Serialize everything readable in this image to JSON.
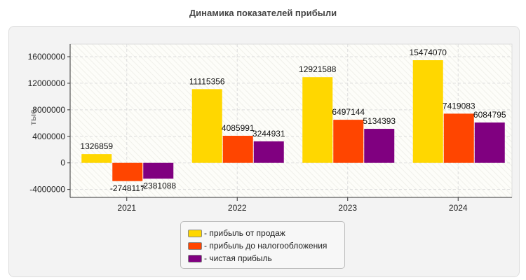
{
  "chart_data": {
    "type": "bar",
    "title": "Динамика показателей прибыли",
    "ylabel": "тыс.",
    "xlabel": "",
    "categories": [
      "2021",
      "2022",
      "2023",
      "2024"
    ],
    "series": [
      {
        "name": "- прибыль от продаж",
        "color": "#FFD700",
        "values": [
          1326859,
          11115356,
          12921588,
          15474070
        ]
      },
      {
        "name": "- прибыль до налогообложения",
        "color": "#FF4500",
        "values": [
          -2748117,
          4085991,
          6497144,
          7419083
        ]
      },
      {
        "name": "- чистая прибыль",
        "color": "#800080",
        "values": [
          -2381088,
          3244931,
          5134393,
          6084795
        ]
      }
    ],
    "yticks": [
      -4000000,
      0,
      4000000,
      8000000,
      12000000,
      16000000
    ],
    "ylim": [
      -5200000,
      17900000
    ],
    "grid": true,
    "legend_position": "bottom"
  }
}
